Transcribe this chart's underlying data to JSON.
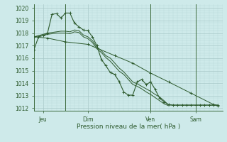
{
  "background_color": "#ceeaea",
  "grid_color_major": "#a8c8c8",
  "grid_color_minor": "#b8d8d8",
  "line_color": "#2d5a2d",
  "title": "Pression niveau de la mer( hPa )",
  "ylim": [
    1011.8,
    1020.3
  ],
  "yticks": [
    1012,
    1013,
    1014,
    1015,
    1016,
    1017,
    1018,
    1019,
    1020
  ],
  "day_labels": [
    "Jeu",
    "Dim",
    "Ven",
    "Sam"
  ],
  "day_positions": [
    2,
    12,
    26,
    36
  ],
  "day_vlines": [
    7,
    26,
    36
  ],
  "xlim": [
    0,
    42
  ],
  "series1": {
    "x": [
      0,
      1,
      2,
      3,
      4,
      5,
      6,
      7,
      8,
      9,
      10,
      11,
      12,
      13,
      14,
      15,
      16,
      17,
      18,
      19,
      20,
      21,
      22,
      23,
      24,
      25,
      26,
      27,
      28,
      29,
      30,
      31,
      32,
      33,
      34,
      35,
      36,
      37,
      38,
      39,
      40,
      41
    ],
    "y": [
      1016.7,
      1017.7,
      1017.8,
      1018.0,
      1019.5,
      1019.55,
      1019.2,
      1019.6,
      1019.6,
      1018.8,
      1018.5,
      1018.25,
      1018.2,
      1017.7,
      1017.0,
      1015.9,
      1015.4,
      1014.85,
      1014.7,
      1014.1,
      1013.3,
      1013.05,
      1013.05,
      1014.1,
      1014.3,
      1013.9,
      1014.1,
      1013.5,
      1012.8,
      1012.5,
      1012.3,
      1012.25,
      1012.25,
      1012.25,
      1012.25,
      1012.25,
      1012.25,
      1012.25,
      1012.25,
      1012.25,
      1012.25,
      1012.25
    ]
  },
  "series2": {
    "x": [
      0,
      1,
      2,
      3,
      4,
      5,
      6,
      7,
      8,
      9,
      10,
      11,
      12,
      13,
      14,
      15,
      16,
      17,
      18,
      19,
      20,
      21,
      22,
      23,
      24,
      25,
      26,
      27,
      28,
      29,
      30,
      31,
      32,
      33,
      34,
      35,
      36,
      37,
      38,
      39,
      40,
      41
    ],
    "y": [
      1017.7,
      1017.8,
      1017.9,
      1018.0,
      1018.05,
      1018.1,
      1018.15,
      1018.15,
      1018.1,
      1018.25,
      1018.2,
      1017.85,
      1017.7,
      1017.4,
      1016.9,
      1016.6,
      1016.2,
      1016.0,
      1015.6,
      1015.2,
      1014.9,
      1014.5,
      1014.1,
      1013.95,
      1013.75,
      1013.55,
      1013.35,
      1013.1,
      1012.9,
      1012.6,
      1012.25,
      1012.25,
      1012.25,
      1012.25,
      1012.25,
      1012.25,
      1012.25,
      1012.25,
      1012.25,
      1012.25,
      1012.25,
      1012.25
    ]
  },
  "series3": {
    "x": [
      0,
      1,
      2,
      3,
      4,
      5,
      6,
      7,
      8,
      9,
      10,
      11,
      12,
      13,
      14,
      15,
      16,
      17,
      18,
      19,
      20,
      21,
      22,
      23,
      24,
      25,
      26,
      27,
      28,
      29,
      30
    ],
    "y": [
      1017.7,
      1017.75,
      1017.8,
      1017.9,
      1017.95,
      1018.0,
      1018.0,
      1018.0,
      1017.95,
      1018.1,
      1018.05,
      1017.7,
      1017.55,
      1017.25,
      1016.75,
      1016.45,
      1016.05,
      1015.75,
      1015.35,
      1014.95,
      1014.7,
      1014.3,
      1013.9,
      1013.75,
      1013.55,
      1013.3,
      1013.1,
      1012.85,
      1012.6,
      1012.35,
      1012.2
    ]
  },
  "series4_smooth": {
    "x": [
      0,
      3,
      7,
      12,
      18,
      22,
      26,
      30,
      35,
      40,
      41
    ],
    "y": [
      1017.7,
      1017.6,
      1017.3,
      1017.1,
      1016.2,
      1015.6,
      1014.8,
      1014.1,
      1013.2,
      1012.3,
      1012.2
    ]
  },
  "markers1_x": [
    0,
    1,
    3,
    4,
    5,
    7,
    8,
    11,
    13,
    14,
    15,
    16,
    17,
    18,
    19,
    20,
    21,
    23,
    24,
    25,
    26,
    27,
    28,
    29,
    30
  ],
  "markers1_y": [
    1016.7,
    1017.7,
    1018.0,
    1019.5,
    1019.55,
    1019.6,
    1019.6,
    1018.25,
    1017.7,
    1017.0,
    1015.9,
    1015.4,
    1014.85,
    1014.7,
    1014.1,
    1013.3,
    1013.05,
    1014.1,
    1014.3,
    1013.9,
    1014.1,
    1013.5,
    1012.8,
    1012.5,
    1012.3
  ],
  "markers4_x": [
    0,
    7,
    12,
    18,
    22,
    26,
    30,
    35,
    40
  ],
  "markers4_y": [
    1017.7,
    1017.3,
    1017.1,
    1016.2,
    1015.6,
    1014.8,
    1014.1,
    1013.2,
    1012.3
  ]
}
